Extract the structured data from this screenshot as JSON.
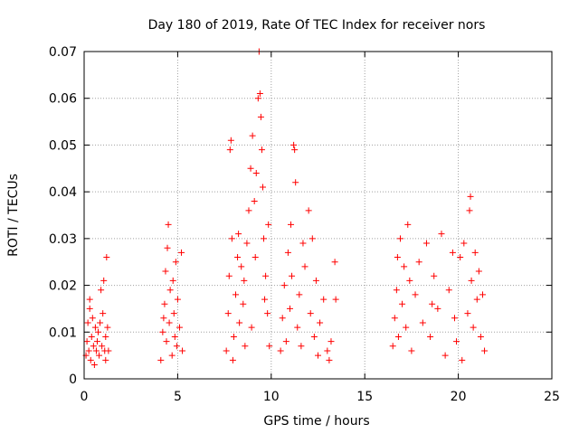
{
  "chart_data": {
    "type": "scatter",
    "title": "Day 180 of 2019, Rate Of TEC Index for receiver nors",
    "xlabel": "GPS time / hours",
    "ylabel": "ROTI / TECUs",
    "xlim": [
      0,
      25
    ],
    "ylim": [
      0,
      0.07
    ],
    "x_ticks": [
      0,
      5,
      10,
      15,
      20,
      25
    ],
    "y_ticks": [
      0,
      0.01,
      0.02,
      0.03,
      0.04,
      0.05,
      0.06,
      0.07
    ],
    "x_tick_labels": [
      "0",
      "5",
      "10",
      "15",
      "20",
      "25"
    ],
    "y_tick_labels": [
      "0",
      "0.01",
      "0.02",
      "0.03",
      "0.04",
      "0.05",
      "0.06",
      "0.07"
    ],
    "grid": true,
    "marker": "+",
    "series": [
      {
        "name": "ROTI",
        "color": "#ff0000",
        "points": [
          [
            0.1,
            0.005
          ],
          [
            0.15,
            0.008
          ],
          [
            0.2,
            0.012
          ],
          [
            0.25,
            0.006
          ],
          [
            0.3,
            0.015
          ],
          [
            0.35,
            0.004
          ],
          [
            0.4,
            0.009
          ],
          [
            0.45,
            0.013
          ],
          [
            0.5,
            0.007
          ],
          [
            0.55,
            0.003
          ],
          [
            0.6,
            0.011
          ],
          [
            0.65,
            0.006
          ],
          [
            0.7,
            0.008
          ],
          [
            0.8,
            0.005
          ],
          [
            0.85,
            0.012
          ],
          [
            0.9,
            0.019
          ],
          [
            0.95,
            0.007
          ],
          [
            1.0,
            0.014
          ],
          [
            1.05,
            0.021
          ],
          [
            1.1,
            0.006
          ],
          [
            1.15,
            0.009
          ],
          [
            1.2,
            0.026
          ],
          [
            1.25,
            0.011
          ],
          [
            1.3,
            0.006
          ],
          [
            0.3,
            0.017
          ],
          [
            0.75,
            0.01
          ],
          [
            1.15,
            0.004
          ],
          [
            4.1,
            0.004
          ],
          [
            4.2,
            0.01
          ],
          [
            4.3,
            0.016
          ],
          [
            4.35,
            0.023
          ],
          [
            4.4,
            0.008
          ],
          [
            4.45,
            0.028
          ],
          [
            4.5,
            0.033
          ],
          [
            4.55,
            0.012
          ],
          [
            4.6,
            0.019
          ],
          [
            4.7,
            0.005
          ],
          [
            4.75,
            0.021
          ],
          [
            4.8,
            0.014
          ],
          [
            4.85,
            0.009
          ],
          [
            4.9,
            0.025
          ],
          [
            4.95,
            0.007
          ],
          [
            5.0,
            0.017
          ],
          [
            5.1,
            0.011
          ],
          [
            5.2,
            0.027
          ],
          [
            5.25,
            0.006
          ],
          [
            4.25,
            0.013
          ],
          [
            7.6,
            0.006
          ],
          [
            7.7,
            0.014
          ],
          [
            7.75,
            0.022
          ],
          [
            7.8,
            0.049
          ],
          [
            7.85,
            0.051
          ],
          [
            7.9,
            0.03
          ],
          [
            8.0,
            0.009
          ],
          [
            8.1,
            0.018
          ],
          [
            8.2,
            0.026
          ],
          [
            8.3,
            0.012
          ],
          [
            8.4,
            0.024
          ],
          [
            8.5,
            0.016
          ],
          [
            8.6,
            0.007
          ],
          [
            8.7,
            0.029
          ],
          [
            8.8,
            0.036
          ],
          [
            8.9,
            0.045
          ],
          [
            9.0,
            0.052
          ],
          [
            9.1,
            0.038
          ],
          [
            9.2,
            0.044
          ],
          [
            9.3,
            0.06
          ],
          [
            9.35,
            0.07
          ],
          [
            9.4,
            0.061
          ],
          [
            9.45,
            0.056
          ],
          [
            9.5,
            0.049
          ],
          [
            9.55,
            0.041
          ],
          [
            9.6,
            0.03
          ],
          [
            9.7,
            0.022
          ],
          [
            9.8,
            0.014
          ],
          [
            9.9,
            0.007
          ],
          [
            8.25,
            0.031
          ],
          [
            8.55,
            0.021
          ],
          [
            8.95,
            0.011
          ],
          [
            9.15,
            0.026
          ],
          [
            9.65,
            0.017
          ],
          [
            9.85,
            0.033
          ],
          [
            7.95,
            0.004
          ],
          [
            10.5,
            0.006
          ],
          [
            10.6,
            0.013
          ],
          [
            10.7,
            0.02
          ],
          [
            10.8,
            0.008
          ],
          [
            10.9,
            0.027
          ],
          [
            11.0,
            0.015
          ],
          [
            11.1,
            0.022
          ],
          [
            11.2,
            0.05
          ],
          [
            11.25,
            0.049
          ],
          [
            11.3,
            0.042
          ],
          [
            11.4,
            0.011
          ],
          [
            11.5,
            0.018
          ],
          [
            11.6,
            0.007
          ],
          [
            11.8,
            0.024
          ],
          [
            12.0,
            0.036
          ],
          [
            12.1,
            0.014
          ],
          [
            12.2,
            0.03
          ],
          [
            12.3,
            0.009
          ],
          [
            12.4,
            0.021
          ],
          [
            12.6,
            0.012
          ],
          [
            12.8,
            0.017
          ],
          [
            13.0,
            0.006
          ],
          [
            13.1,
            0.004
          ],
          [
            13.2,
            0.008
          ],
          [
            13.4,
            0.025
          ],
          [
            13.45,
            0.017
          ],
          [
            11.05,
            0.033
          ],
          [
            11.7,
            0.029
          ],
          [
            12.5,
            0.005
          ],
          [
            16.5,
            0.007
          ],
          [
            16.6,
            0.013
          ],
          [
            16.7,
            0.019
          ],
          [
            16.8,
            0.009
          ],
          [
            16.9,
            0.03
          ],
          [
            17.0,
            0.016
          ],
          [
            17.1,
            0.024
          ],
          [
            17.2,
            0.011
          ],
          [
            17.3,
            0.033
          ],
          [
            17.4,
            0.021
          ],
          [
            17.5,
            0.006
          ],
          [
            17.7,
            0.018
          ],
          [
            17.9,
            0.025
          ],
          [
            18.1,
            0.012
          ],
          [
            18.3,
            0.029
          ],
          [
            18.5,
            0.009
          ],
          [
            18.7,
            0.022
          ],
          [
            18.9,
            0.015
          ],
          [
            19.1,
            0.031
          ],
          [
            19.3,
            0.005
          ],
          [
            19.5,
            0.019
          ],
          [
            19.7,
            0.027
          ],
          [
            19.9,
            0.008
          ],
          [
            20.1,
            0.026
          ],
          [
            20.3,
            0.029
          ],
          [
            20.5,
            0.014
          ],
          [
            20.6,
            0.036
          ],
          [
            20.65,
            0.039
          ],
          [
            20.7,
            0.021
          ],
          [
            20.8,
            0.011
          ],
          [
            20.9,
            0.027
          ],
          [
            21.0,
            0.017
          ],
          [
            21.1,
            0.023
          ],
          [
            21.2,
            0.009
          ],
          [
            21.3,
            0.018
          ],
          [
            21.4,
            0.006
          ],
          [
            16.75,
            0.026
          ],
          [
            18.6,
            0.016
          ],
          [
            19.8,
            0.013
          ],
          [
            20.2,
            0.004
          ]
        ]
      }
    ]
  }
}
